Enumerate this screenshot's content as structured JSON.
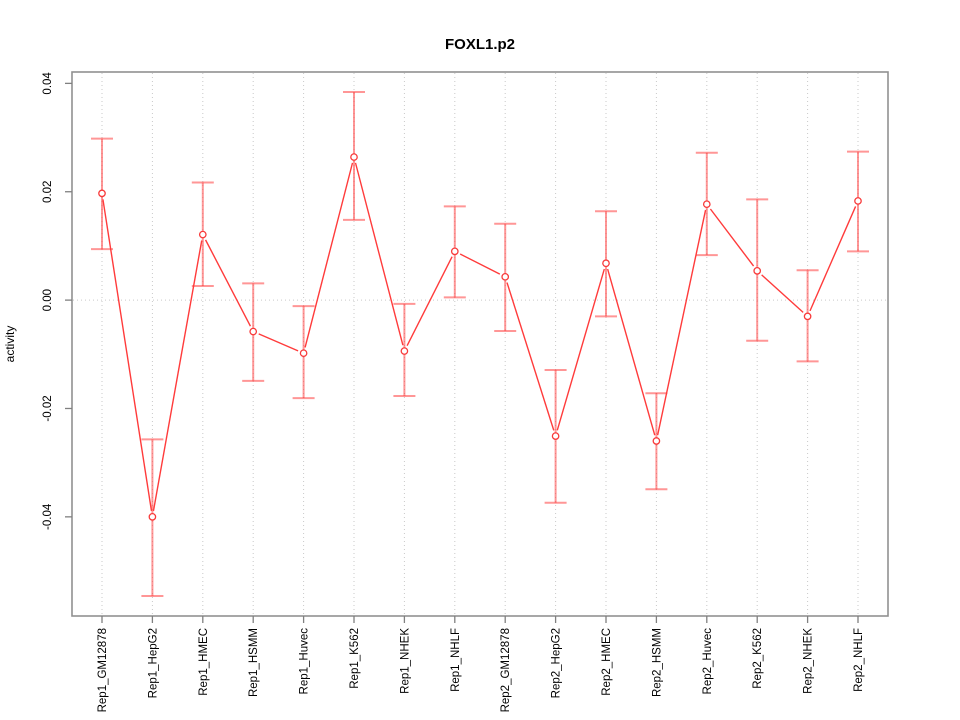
{
  "title": "FOXL1.p2",
  "chart_data": {
    "type": "line",
    "title": "FOXL1.p2",
    "xlabel": "",
    "ylabel": "activity",
    "categories": [
      "Rep1_GM12878",
      "Rep1_HepG2",
      "Rep1_HMEC",
      "Rep1_HSMM",
      "Rep1_Huvec",
      "Rep1_K562",
      "Rep1_NHEK",
      "Rep1_NHLF",
      "Rep2_GM12878",
      "Rep2_HepG2",
      "Rep2_HMEC",
      "Rep2_HSMM",
      "Rep2_Huvec",
      "Rep2_K562",
      "Rep2_NHEK",
      "Rep2_NHLF"
    ],
    "series": [
      {
        "name": "activity",
        "values": [
          0.0197,
          -0.04,
          0.0121,
          -0.0058,
          -0.0098,
          0.0264,
          -0.0094,
          0.009,
          0.0043,
          -0.0251,
          0.0068,
          -0.026,
          0.0177,
          0.0054,
          -0.003,
          0.0183
        ],
        "error_low": [
          0.0094,
          -0.0546,
          0.0026,
          -0.0149,
          -0.0181,
          0.0148,
          -0.0177,
          0.0005,
          -0.0057,
          -0.0374,
          -0.003,
          -0.0349,
          0.0083,
          -0.0075,
          -0.0113,
          0.009
        ],
        "error_high": [
          0.0298,
          -0.0257,
          0.0217,
          0.0031,
          -0.0011,
          0.0384,
          -0.0007,
          0.0173,
          0.0141,
          -0.0129,
          0.0164,
          -0.0172,
          0.0272,
          0.0186,
          0.0055,
          0.0274
        ]
      }
    ],
    "ylim": [
      -0.0583,
      0.0421
    ],
    "yticks": {
      "values": [
        -0.04,
        -0.02,
        0,
        0.02,
        0.04
      ],
      "labels": [
        "-0.04",
        "-0.02",
        "0.00",
        "0.02",
        "0.04"
      ]
    },
    "grid": {
      "vertical_per_category": true,
      "horizontal_zero_line": true,
      "style": "dotted"
    },
    "legend_position": "none",
    "marker": "open-circle",
    "colors": {
      "line": "#ff3b3b",
      "point_stroke": "#f83a3a",
      "error_bar": "rgba(255,64,64,0.55)",
      "grid": "#c9c9c9",
      "border": "#919191",
      "tick": "#808080",
      "text": "#000000",
      "background": "#ffffff"
    }
  }
}
